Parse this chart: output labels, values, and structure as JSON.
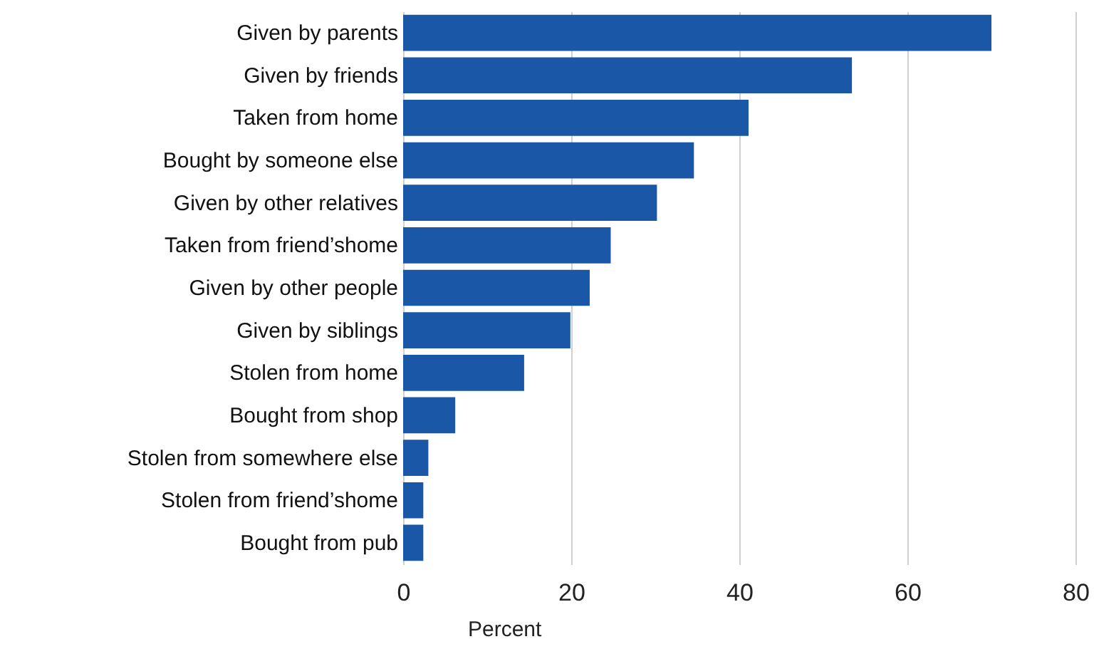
{
  "chart_data": {
    "type": "bar",
    "orientation": "horizontal",
    "xlabel": "Percent",
    "categories": [
      "Given by parents",
      "Given by friends",
      "Taken from home",
      "Bought by someone else",
      "Given by other relatives",
      "Taken from friend’shome",
      "Given by other people",
      "Given by siblings",
      "Stolen from home",
      "Bought from shop",
      "Stolen from somewhere else",
      "Stolen from friend’shome",
      "Bought from pub"
    ],
    "values": [
      70,
      53.4,
      41.1,
      34.6,
      30.2,
      24.7,
      22.2,
      19.9,
      14.4,
      6.2,
      3.0,
      2.4,
      2.4
    ],
    "color": "#1a57a6",
    "xlim": [
      0,
      80
    ],
    "xticks": [
      0,
      20,
      40,
      60,
      80
    ],
    "grid": "x"
  }
}
